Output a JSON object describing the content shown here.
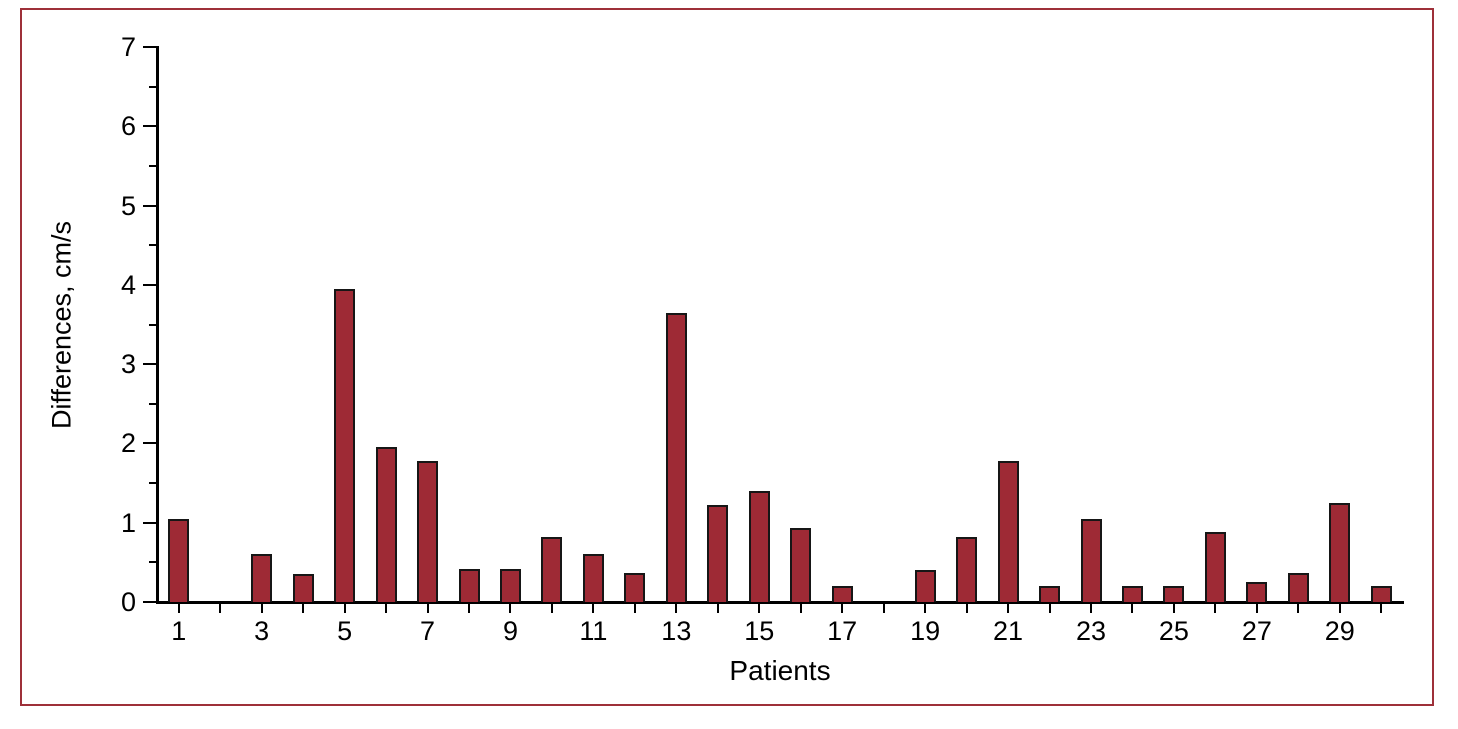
{
  "frame": {
    "border_color": "#9e3039",
    "background_color": "#ffffff"
  },
  "chart_data": {
    "type": "bar",
    "title": "",
    "xlabel": "Patients",
    "ylabel": "Differences, cm/s",
    "ylim": [
      0,
      7
    ],
    "y_ticks": [
      0,
      1,
      2,
      3,
      4,
      5,
      6,
      7
    ],
    "y_minor_tick_step": 0.5,
    "x_labeled_ticks": [
      "1",
      "3",
      "5",
      "7",
      "9",
      "11",
      "13",
      "15",
      "17",
      "19",
      "21",
      "23",
      "25",
      "27",
      "29"
    ],
    "categories": [
      1,
      2,
      3,
      4,
      5,
      6,
      7,
      8,
      9,
      10,
      11,
      12,
      13,
      14,
      15,
      16,
      17,
      18,
      19,
      20,
      21,
      22,
      23,
      24,
      25,
      26,
      27,
      28,
      29,
      30
    ],
    "values": [
      1.05,
      0,
      0.6,
      0.35,
      3.95,
      1.95,
      1.78,
      0.42,
      0.42,
      0.82,
      0.6,
      0.37,
      3.65,
      1.22,
      1.4,
      0.93,
      0.2,
      0,
      0.4,
      0.82,
      1.78,
      0.2,
      1.05,
      0.2,
      0.2,
      0.88,
      0.25,
      0.37,
      1.25,
      0.2
    ],
    "bar_color": "#9e2a35",
    "bar_border_color": "#161616",
    "axis_color": "#000000",
    "grid": false,
    "legend": "none"
  }
}
